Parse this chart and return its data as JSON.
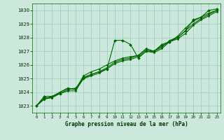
{
  "title": "Graphe pression niveau de la mer (hPa)",
  "xlabel_hours": [
    0,
    1,
    2,
    3,
    4,
    5,
    6,
    7,
    8,
    9,
    10,
    11,
    12,
    13,
    14,
    15,
    16,
    17,
    18,
    19,
    20,
    21,
    22,
    23
  ],
  "ylim": [
    1022.5,
    1030.5
  ],
  "xlim": [
    -0.5,
    23.5
  ],
  "yticks": [
    1023,
    1024,
    1025,
    1026,
    1027,
    1028,
    1029,
    1030
  ],
  "bg_color": "#cce8dc",
  "grid_color": "#99ccbb",
  "line_color": "#006600",
  "marker_color": "#006600",
  "series": [
    [
      1023.0,
      1023.7,
      1023.7,
      1023.9,
      1024.2,
      1024.3,
      1025.0,
      1025.3,
      1025.5,
      1025.7,
      1027.8,
      1027.8,
      1027.5,
      1026.5,
      1027.0,
      1027.0,
      1027.5,
      1027.7,
      1028.0,
      1028.5,
      1029.3,
      1029.5,
      1030.0,
      1030.1
    ],
    [
      1023.0,
      1023.6,
      1023.6,
      1024.0,
      1024.3,
      1024.2,
      1025.2,
      1025.5,
      1025.7,
      1026.0,
      1026.3,
      1026.5,
      1026.6,
      1026.7,
      1027.2,
      1027.0,
      1027.4,
      1027.7,
      1028.1,
      1028.7,
      1029.2,
      1029.5,
      1029.8,
      1030.0
    ],
    [
      1023.0,
      1023.5,
      1023.7,
      1024.0,
      1024.3,
      1024.2,
      1025.1,
      1025.3,
      1025.5,
      1025.8,
      1026.2,
      1026.4,
      1026.5,
      1026.7,
      1027.1,
      1027.0,
      1027.3,
      1027.8,
      1028.0,
      1028.5,
      1029.0,
      1029.4,
      1029.7,
      1030.0
    ],
    [
      1023.0,
      1023.5,
      1023.6,
      1023.9,
      1024.1,
      1024.1,
      1025.0,
      1025.2,
      1025.4,
      1025.7,
      1026.1,
      1026.3,
      1026.4,
      1026.6,
      1027.0,
      1026.9,
      1027.2,
      1027.7,
      1027.9,
      1028.3,
      1028.9,
      1029.3,
      1029.6,
      1029.9
    ]
  ]
}
